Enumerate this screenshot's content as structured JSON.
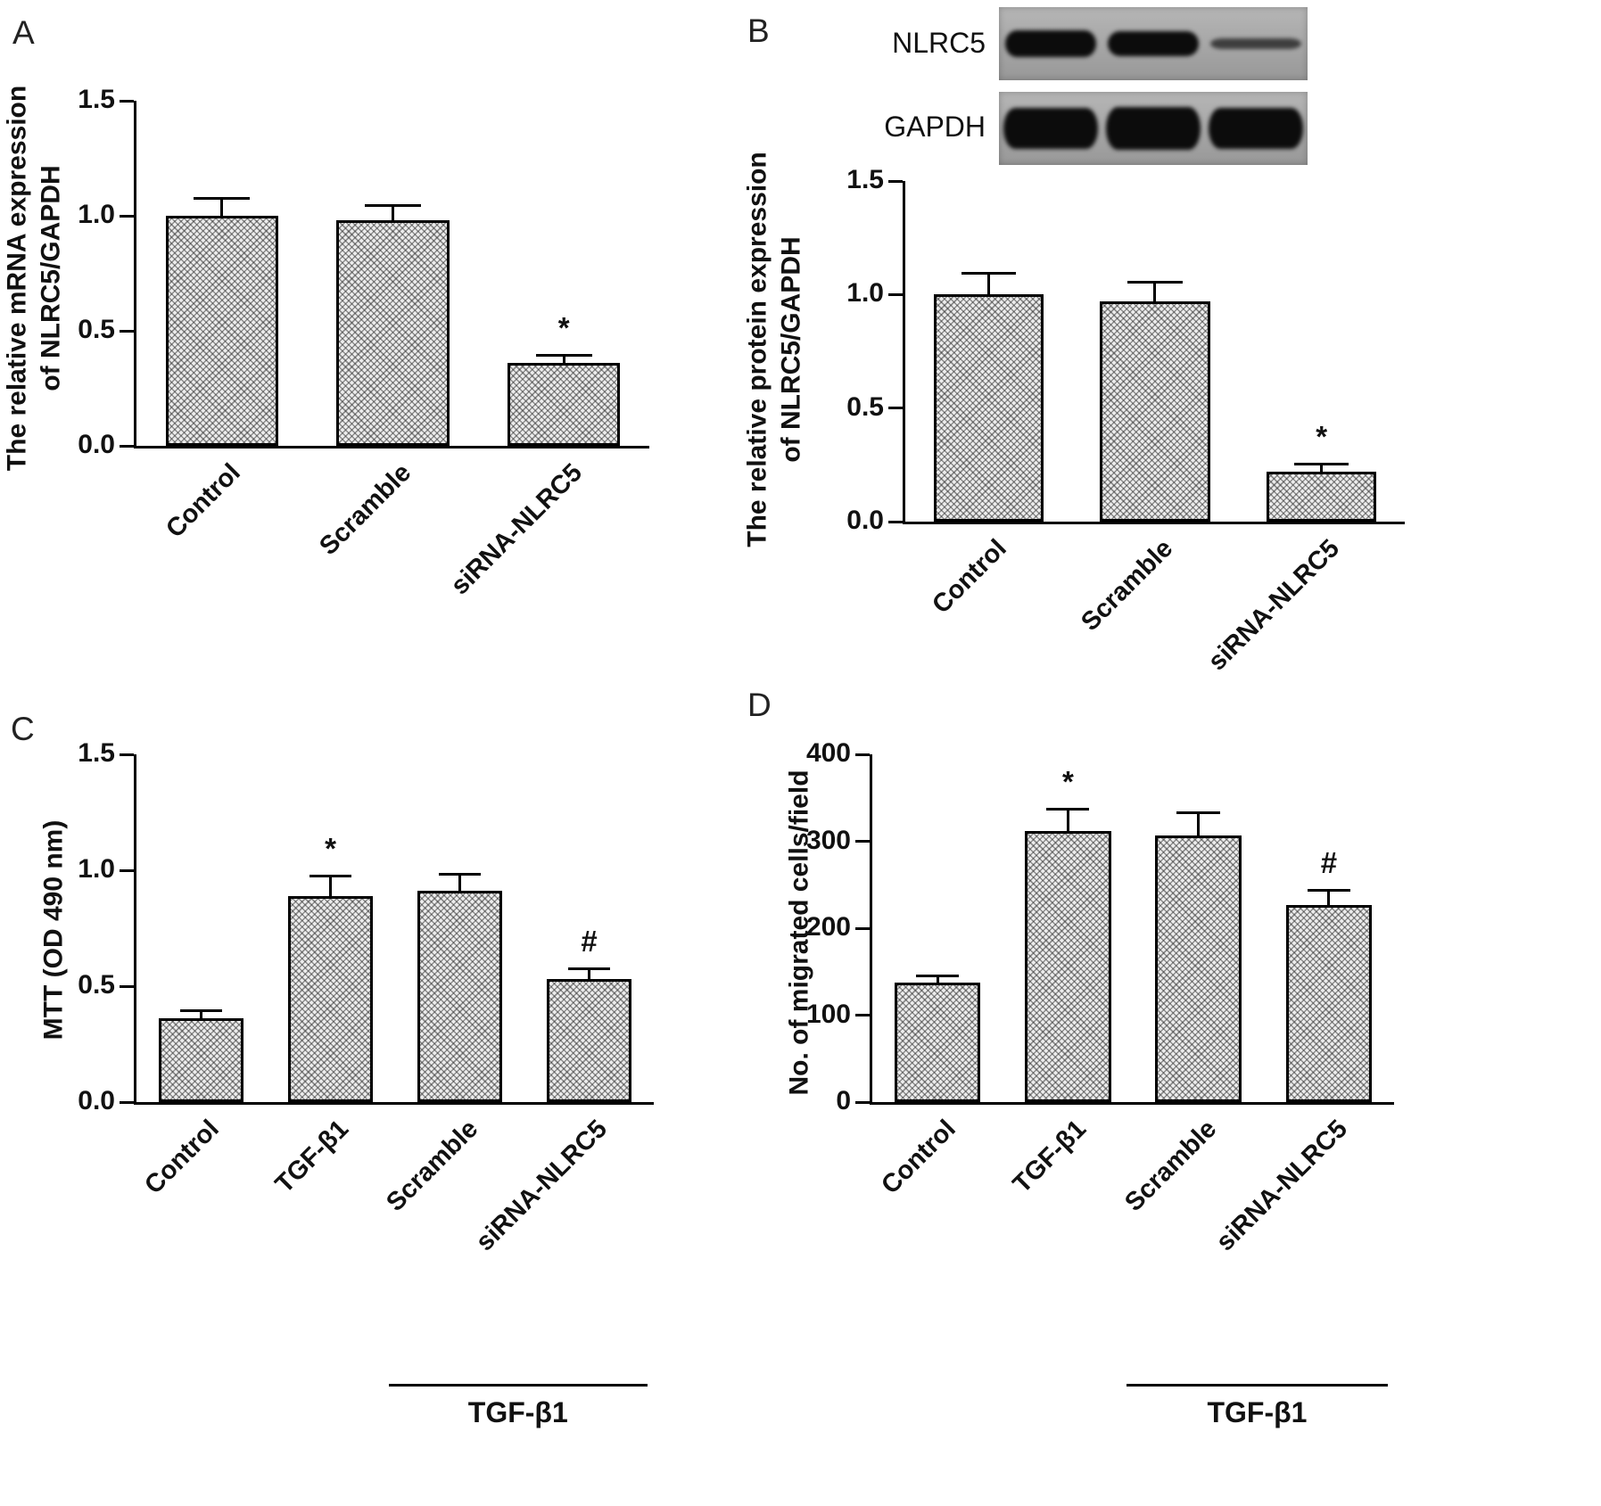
{
  "figure": {
    "panels": {
      "A": {
        "letter": "A"
      },
      "B": {
        "letter": "B"
      },
      "C": {
        "letter": "C"
      },
      "D": {
        "letter": "D"
      }
    }
  },
  "western_blot": {
    "rows": [
      {
        "label": "NLRC5",
        "band_height": 30,
        "lanes": [
          1.0,
          0.92,
          0.38
        ]
      },
      {
        "label": "GAPDH",
        "band_height": 46,
        "lanes": [
          1.0,
          1.05,
          1.0
        ]
      }
    ]
  },
  "chart_data": [
    {
      "type": "bar",
      "panel": "A",
      "ylabel": "The relative mRNA expression\nof NLRC5/GAPDH",
      "categories": [
        "Control",
        "Scramble",
        "siRNA-NLRC5"
      ],
      "values": [
        1.0,
        0.98,
        0.36
      ],
      "errors": [
        0.08,
        0.07,
        0.04
      ],
      "annotations": [
        "",
        "",
        "*"
      ],
      "yticks": [
        "0.0",
        "0.5",
        "1.0",
        "1.5"
      ],
      "ylim": [
        0,
        1.5
      ],
      "grid": false,
      "legend": false
    },
    {
      "type": "bar",
      "panel": "B",
      "ylabel": "The relative protein expression\nof NLRC5/GAPDH",
      "categories": [
        "Control",
        "Scramble",
        "siRNA-NLRC5"
      ],
      "values": [
        1.0,
        0.97,
        0.22
      ],
      "errors": [
        0.1,
        0.09,
        0.04
      ],
      "annotations": [
        "",
        "",
        "*"
      ],
      "yticks": [
        "0.0",
        "0.5",
        "1.0",
        "1.5"
      ],
      "ylim": [
        0,
        1.5
      ],
      "grid": false,
      "legend": false
    },
    {
      "type": "bar",
      "panel": "C",
      "ylabel": "MTT (OD 490 nm)",
      "categories": [
        "Control",
        "TGF-β1",
        "Scramble",
        "siRNA-NLRC5"
      ],
      "values": [
        0.36,
        0.89,
        0.91,
        0.53
      ],
      "errors": [
        0.04,
        0.09,
        0.08,
        0.05
      ],
      "annotations": [
        "",
        "*",
        "",
        "#"
      ],
      "yticks": [
        "0.0",
        "0.5",
        "1.0",
        "1.5"
      ],
      "ylim": [
        0,
        1.5
      ],
      "group": {
        "label": "TGF-β1",
        "from": 2,
        "to": 3
      },
      "grid": false,
      "legend": false
    },
    {
      "type": "bar",
      "panel": "D",
      "ylabel": "No. of migrated cells/field",
      "categories": [
        "Control",
        "TGF-β1",
        "Scramble",
        "siRNA-NLRC5"
      ],
      "values": [
        137,
        312,
        307,
        227
      ],
      "errors": [
        10,
        26,
        27,
        18
      ],
      "annotations": [
        "",
        "*",
        "",
        "#"
      ],
      "yticks": [
        "0",
        "100",
        "200",
        "300",
        "400"
      ],
      "ylim": [
        0,
        400
      ],
      "group": {
        "label": "TGF-β1",
        "from": 2,
        "to": 3
      },
      "grid": false,
      "legend": false
    }
  ]
}
